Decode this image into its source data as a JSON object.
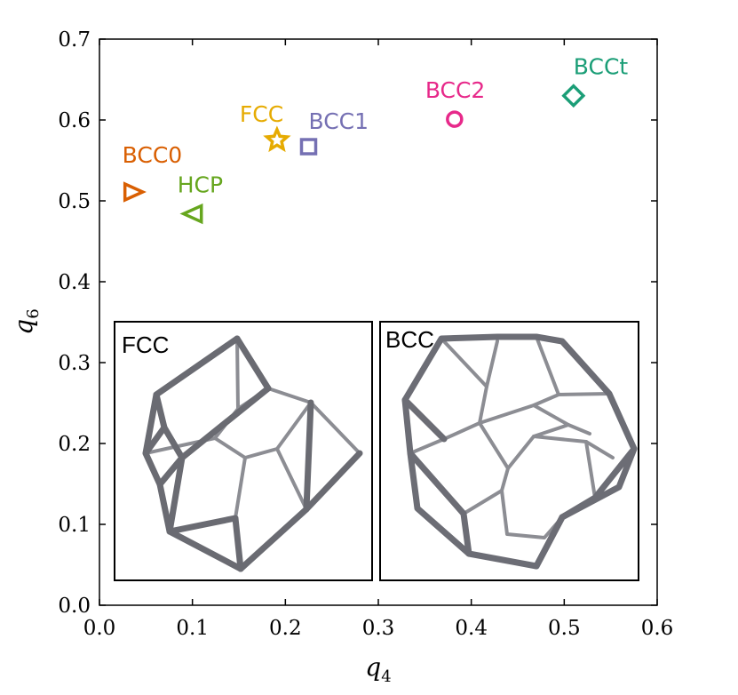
{
  "chart_data": {
    "type": "scatter",
    "title": "",
    "xlabel": "q",
    "xlabel_sub": "4",
    "ylabel": "q",
    "ylabel_sub": "6",
    "xlim": [
      0.0,
      0.6
    ],
    "ylim": [
      0.0,
      0.7
    ],
    "xticks": [
      "0.0",
      "0.1",
      "0.2",
      "0.3",
      "0.4",
      "0.5",
      "0.6"
    ],
    "yticks": [
      "0.0",
      "0.1",
      "0.2",
      "0.3",
      "0.4",
      "0.5",
      "0.6",
      "0.7"
    ],
    "grid": false,
    "points": [
      {
        "label": "BCC0",
        "x": 0.036,
        "y": 0.511,
        "marker": "triangle-right",
        "color": "#d95f02"
      },
      {
        "label": "HCP",
        "x": 0.101,
        "y": 0.484,
        "marker": "triangle-left",
        "color": "#66a61e"
      },
      {
        "label": "FCC",
        "x": 0.191,
        "y": 0.575,
        "marker": "star",
        "color": "#e6ab02"
      },
      {
        "label": "BCC1",
        "x": 0.225,
        "y": 0.567,
        "marker": "square",
        "color": "#7570b3"
      },
      {
        "label": "BCC2",
        "x": 0.382,
        "y": 0.601,
        "marker": "circle",
        "color": "#e7298a"
      },
      {
        "label": "BCCt",
        "x": 0.51,
        "y": 0.63,
        "marker": "diamond",
        "color": "#1b9e77"
      }
    ],
    "insets": [
      {
        "title": "FCC"
      },
      {
        "title": "BCC"
      }
    ]
  }
}
